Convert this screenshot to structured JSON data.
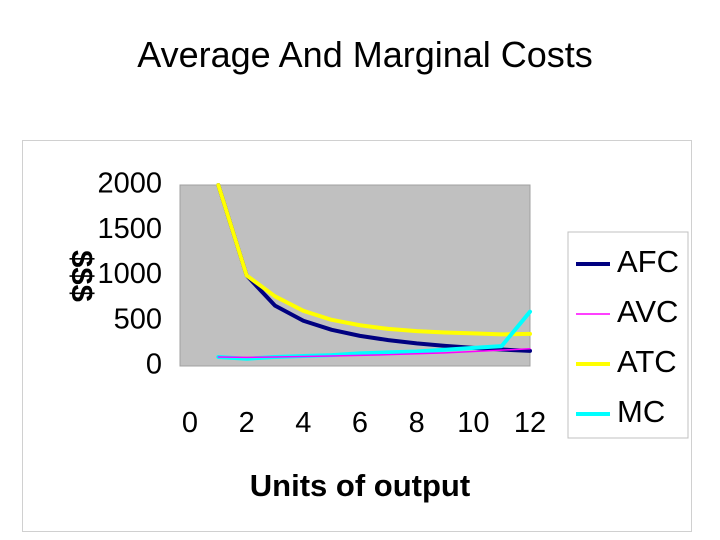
{
  "slide": {
    "title": "Average And Marginal Costs"
  },
  "chart_data": {
    "type": "line",
    "title": "",
    "xlabel": "Units of output",
    "ylabel": "$$$",
    "xlim": [
      0,
      12
    ],
    "ylim": [
      0,
      2000
    ],
    "x_ticks": [
      "0",
      "2",
      "4",
      "6",
      "8",
      "10",
      "12"
    ],
    "y_ticks": [
      "0",
      "500",
      "1000",
      "1500",
      "2000"
    ],
    "grid": false,
    "plot_background": "#c0c0c0",
    "legend_position": "right",
    "x": [
      1,
      2,
      3,
      4,
      5,
      6,
      7,
      8,
      9,
      10,
      11,
      12
    ],
    "series": [
      {
        "name": "AFC",
        "color": "#000080",
        "values": [
          2000,
          1000,
          667,
          500,
          400,
          333,
          286,
          250,
          222,
          200,
          182,
          167
        ]
      },
      {
        "name": "AVC",
        "color": "#ff00ff",
        "values": [
          100,
          95,
          100,
          105,
          110,
          118,
          125,
          135,
          145,
          160,
          175,
          190
        ]
      },
      {
        "name": "ATC",
        "color": "#ffff00",
        "values": [
          2050,
          1000,
          770,
          610,
          510,
          450,
          410,
          385,
          370,
          360,
          350,
          355
        ]
      },
      {
        "name": "MC",
        "color": "#00ffff",
        "values": [
          100,
          80,
          100,
          110,
          120,
          140,
          150,
          160,
          180,
          200,
          220,
          600
        ]
      }
    ]
  }
}
